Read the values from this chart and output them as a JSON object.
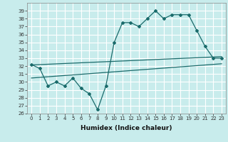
{
  "xlabel": "Humidex (Indice chaleur)",
  "background_color": "#c8ecec",
  "grid_color": "#ffffff",
  "line_color": "#1a6b6b",
  "xlim": [
    -0.5,
    23.5
  ],
  "ylim": [
    26,
    40
  ],
  "xticks": [
    0,
    1,
    2,
    3,
    4,
    5,
    6,
    7,
    8,
    9,
    10,
    11,
    12,
    13,
    14,
    15,
    16,
    17,
    18,
    19,
    20,
    21,
    22,
    23
  ],
  "yticks": [
    26,
    27,
    28,
    29,
    30,
    31,
    32,
    33,
    34,
    35,
    36,
    37,
    38,
    39
  ],
  "main_x": [
    0,
    1,
    2,
    3,
    4,
    5,
    6,
    7,
    8,
    9,
    10,
    11,
    12,
    13,
    14,
    15,
    16,
    17,
    18,
    19,
    20,
    21,
    22,
    23
  ],
  "main_y": [
    32.2,
    31.7,
    29.5,
    30.0,
    29.5,
    30.5,
    29.2,
    28.5,
    26.5,
    29.5,
    35.0,
    37.5,
    37.5,
    37.0,
    38.0,
    39.0,
    38.0,
    38.5,
    38.5,
    38.5,
    36.5,
    34.5,
    33.0,
    33.0
  ],
  "upper_line_x": [
    0,
    23
  ],
  "upper_line_y": [
    32.15,
    33.2
  ],
  "lower_line_x": [
    0,
    23
  ],
  "lower_line_y": [
    30.5,
    32.3
  ],
  "tick_fontsize": 5.0,
  "xlabel_fontsize": 6.5
}
